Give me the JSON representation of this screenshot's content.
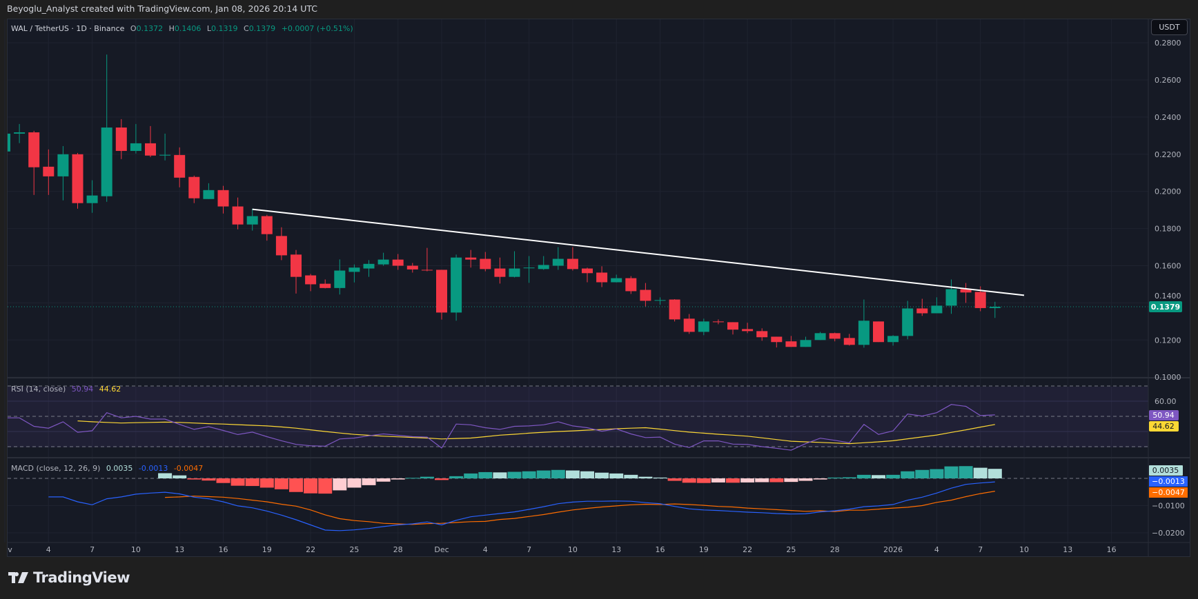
{
  "attribution": "Beyoglu_Analyst created with TradingView.com, Jan 08, 2026 20:14 UTC",
  "symbol_legend": {
    "symbol": "WAL / TetherUS · 1D · Binance",
    "open_label": "O",
    "open": "0.1372",
    "high_label": "H",
    "high": "0.1406",
    "low_label": "L",
    "low": "0.1319",
    "close_label": "C",
    "close": "0.1379",
    "change": "+0.0007 (+0.51%)"
  },
  "currency_button": "USDT",
  "last_price_badge": "0.1379",
  "rsi_legend": {
    "title": "RSI (14, close)",
    "rsi": "50.94",
    "ma": "44.62"
  },
  "macd_legend": {
    "title": "MACD (close, 12, 26, 9)",
    "hist": "0.0035",
    "macd": "-0.0013",
    "signal": "-0.0047"
  },
  "badges": {
    "rsi": "50.94",
    "rsi_ma": "44.62",
    "hist": "0.0035",
    "macd": "−0.0013",
    "signal": "−0.0047"
  },
  "logo_text": "TradingView",
  "colors": {
    "up": "#089981",
    "down": "#f23645",
    "rsi": "#7e57c2",
    "rsi_ma": "#fdd835",
    "macd": "#2962ff",
    "signal": "#ff6d00",
    "hist_up_grow": "#26a69a",
    "hist_up_fall": "#b2dfdb",
    "hist_down_grow": "#ff5252",
    "hist_down_fall": "#ffcdd2",
    "trendline": "#ffffff",
    "background": "#161a25"
  },
  "chart_data": {
    "type": "candlestick",
    "price_axis": {
      "ticks": [
        "0.2800",
        "0.2600",
        "0.2400",
        "0.2200",
        "0.2000",
        "0.1800",
        "0.1600",
        "0.1400",
        "0.1200",
        "0.1000"
      ],
      "range": [
        0.1,
        0.2875
      ]
    },
    "date_axis": [
      {
        "date": "2025-11-01",
        "label": "Nov"
      },
      {
        "date": "2025-11-04",
        "label": "4"
      },
      {
        "date": "2025-11-07",
        "label": "7"
      },
      {
        "date": "2025-11-10",
        "label": "10"
      },
      {
        "date": "2025-11-13",
        "label": "13"
      },
      {
        "date": "2025-11-16",
        "label": "16"
      },
      {
        "date": "2025-11-19",
        "label": "19"
      },
      {
        "date": "2025-11-22",
        "label": "22"
      },
      {
        "date": "2025-11-25",
        "label": "25"
      },
      {
        "date": "2025-11-28",
        "label": "28"
      },
      {
        "date": "2025-12-01",
        "label": "Dec"
      },
      {
        "date": "2025-12-04",
        "label": "4"
      },
      {
        "date": "2025-12-07",
        "label": "7"
      },
      {
        "date": "2025-12-10",
        "label": "10"
      },
      {
        "date": "2025-12-13",
        "label": "13"
      },
      {
        "date": "2025-12-16",
        "label": "16"
      },
      {
        "date": "2025-12-19",
        "label": "19"
      },
      {
        "date": "2025-12-22",
        "label": "22"
      },
      {
        "date": "2025-12-25",
        "label": "25"
      },
      {
        "date": "2025-12-28",
        "label": "28"
      },
      {
        "date": "2026-01-01",
        "label": "2026"
      },
      {
        "date": "2026-01-04",
        "label": "4"
      },
      {
        "date": "2026-01-07",
        "label": "7"
      },
      {
        "date": "2026-01-10",
        "label": "10"
      },
      {
        "date": "2026-01-13",
        "label": "13"
      },
      {
        "date": "2026-01-16",
        "label": "16"
      }
    ],
    "candles_fields": [
      "date",
      "open",
      "high",
      "low",
      "close"
    ],
    "candles": [
      [
        "2025-11-01",
        0.2215,
        0.233,
        0.2215,
        0.2311
      ],
      [
        "2025-11-02",
        0.2311,
        0.2363,
        0.226,
        0.2318
      ],
      [
        "2025-11-03",
        0.2318,
        0.2326,
        0.1981,
        0.213
      ],
      [
        "2025-11-04",
        0.2133,
        0.2226,
        0.1981,
        0.2081
      ],
      [
        "2025-11-05",
        0.2081,
        0.2244,
        0.1952,
        0.22
      ],
      [
        "2025-11-06",
        0.22,
        0.2207,
        0.1907,
        0.1937
      ],
      [
        "2025-11-07",
        0.1937,
        0.206,
        0.1885,
        0.1978
      ],
      [
        "2025-11-08",
        0.1974,
        0.2737,
        0.1944,
        0.2344
      ],
      [
        "2025-11-09",
        0.2344,
        0.2389,
        0.2174,
        0.2218
      ],
      [
        "2025-11-10",
        0.2218,
        0.2363,
        0.2204,
        0.2259
      ],
      [
        "2025-11-11",
        0.2259,
        0.2352,
        0.2185,
        0.2193
      ],
      [
        "2025-11-12",
        0.2193,
        0.2311,
        0.2167,
        0.2197
      ],
      [
        "2025-11-13",
        0.2196,
        0.2237,
        0.2022,
        0.2074
      ],
      [
        "2025-11-14",
        0.2078,
        0.2085,
        0.1937,
        0.1963
      ],
      [
        "2025-11-15",
        0.1959,
        0.2044,
        0.1959,
        0.2007
      ],
      [
        "2025-11-16",
        0.2007,
        0.203,
        0.1881,
        0.1919
      ],
      [
        "2025-11-17",
        0.1919,
        0.1967,
        0.1796,
        0.1822
      ],
      [
        "2025-11-18",
        0.1822,
        0.1907,
        0.1789,
        0.1867
      ],
      [
        "2025-11-19",
        0.1867,
        0.1874,
        0.1735,
        0.177
      ],
      [
        "2025-11-20",
        0.176,
        0.1807,
        0.163,
        0.1656
      ],
      [
        "2025-11-21",
        0.166,
        0.1685,
        0.145,
        0.154
      ],
      [
        "2025-11-22",
        0.1548,
        0.1556,
        0.1463,
        0.15
      ],
      [
        "2025-11-23",
        0.1503,
        0.1526,
        0.1478,
        0.148
      ],
      [
        "2025-11-24",
        0.148,
        0.1634,
        0.1445,
        0.1574
      ],
      [
        "2025-11-25",
        0.1567,
        0.1607,
        0.151,
        0.159
      ],
      [
        "2025-11-26",
        0.1585,
        0.163,
        0.154,
        0.161
      ],
      [
        "2025-11-27",
        0.1607,
        0.167,
        0.16,
        0.1633
      ],
      [
        "2025-11-28",
        0.1633,
        0.1663,
        0.1578,
        0.16
      ],
      [
        "2025-11-29",
        0.16,
        0.1615,
        0.1563,
        0.158
      ],
      [
        "2025-11-30",
        0.1578,
        0.1696,
        0.157,
        0.1575
      ],
      [
        "2025-12-01",
        0.1578,
        0.1578,
        0.131,
        0.1348
      ],
      [
        "2025-12-02",
        0.1348,
        0.166,
        0.1304,
        0.1644
      ],
      [
        "2025-12-03",
        0.1644,
        0.1685,
        0.159,
        0.1633
      ],
      [
        "2025-12-04",
        0.1637,
        0.1674,
        0.157,
        0.1582
      ],
      [
        "2025-12-05",
        0.1585,
        0.1644,
        0.1504,
        0.154
      ],
      [
        "2025-12-06",
        0.154,
        0.1678,
        0.1537,
        0.1585
      ],
      [
        "2025-12-07",
        0.1588,
        0.1652,
        0.1508,
        0.159
      ],
      [
        "2025-12-08",
        0.1582,
        0.1652,
        0.1578,
        0.1604
      ],
      [
        "2025-12-09",
        0.16,
        0.17,
        0.1578,
        0.1637
      ],
      [
        "2025-12-10",
        0.1637,
        0.17,
        0.1574,
        0.1582
      ],
      [
        "2025-12-11",
        0.1585,
        0.159,
        0.1511,
        0.156
      ],
      [
        "2025-12-12",
        0.1563,
        0.1597,
        0.1485,
        0.1511
      ],
      [
        "2025-12-13",
        0.1511,
        0.1552,
        0.151,
        0.1533
      ],
      [
        "2025-12-14",
        0.1533,
        0.1544,
        0.1448,
        0.1463
      ],
      [
        "2025-12-15",
        0.147,
        0.1507,
        0.1381,
        0.1411
      ],
      [
        "2025-12-16",
        0.1413,
        0.143,
        0.139,
        0.1415
      ],
      [
        "2025-12-17",
        0.1418,
        0.142,
        0.13,
        0.1311
      ],
      [
        "2025-12-18",
        0.1315,
        0.134,
        0.1233,
        0.1244
      ],
      [
        "2025-12-19",
        0.1244,
        0.1315,
        0.1226,
        0.13
      ],
      [
        "2025-12-20",
        0.13,
        0.1311,
        0.1285,
        0.1296
      ],
      [
        "2025-12-21",
        0.1296,
        0.1296,
        0.123,
        0.1256
      ],
      [
        "2025-12-22",
        0.1259,
        0.1293,
        0.1237,
        0.1248
      ],
      [
        "2025-12-23",
        0.1248,
        0.1263,
        0.1196,
        0.1215
      ],
      [
        "2025-12-24",
        0.1218,
        0.1218,
        0.116,
        0.1189
      ],
      [
        "2025-12-25",
        0.1193,
        0.1222,
        0.1163,
        0.1163
      ],
      [
        "2025-12-26",
        0.1163,
        0.1218,
        0.1163,
        0.12
      ],
      [
        "2025-12-27",
        0.12,
        0.1244,
        0.12,
        0.1237
      ],
      [
        "2025-12-28",
        0.1237,
        0.124,
        0.1193,
        0.1207
      ],
      [
        "2025-12-29",
        0.1211,
        0.1233,
        0.117,
        0.1174
      ],
      [
        "2025-12-30",
        0.1174,
        0.1418,
        0.1159,
        0.1304
      ],
      [
        "2025-12-31",
        0.13,
        0.13,
        0.1189,
        0.1189
      ],
      [
        "2026-01-01",
        0.1189,
        0.1226,
        0.117,
        0.1222
      ],
      [
        "2026-01-02",
        0.1222,
        0.1411,
        0.1204,
        0.137
      ],
      [
        "2026-01-03",
        0.137,
        0.1422,
        0.133,
        0.1344
      ],
      [
        "2026-01-04",
        0.1344,
        0.143,
        0.1344,
        0.1385
      ],
      [
        "2026-01-05",
        0.1385,
        0.1526,
        0.1341,
        0.1474
      ],
      [
        "2026-01-06",
        0.1474,
        0.1507,
        0.14,
        0.1456
      ],
      [
        "2026-01-07",
        0.1459,
        0.1489,
        0.1355,
        0.1372
      ],
      [
        "2026-01-08",
        0.1372,
        0.1406,
        0.1319,
        0.1379
      ]
    ],
    "last_price": 0.1379,
    "trendline": [
      [
        "2025-11-18",
        0.1904
      ],
      [
        "2026-01-10",
        0.1441
      ]
    ],
    "rsi": {
      "levels": [
        70,
        50,
        30
      ],
      "ticks": [
        "60.00"
      ],
      "range": [
        24,
        80
      ],
      "start_date": "2025-11-01",
      "values": [
        49,
        49,
        43.4,
        42.2,
        46.4,
        39.5,
        40.5,
        52.4,
        49,
        50,
        48.2,
        48.2,
        44.7,
        41.4,
        43.2,
        40.7,
        38,
        39.6,
        36.6,
        33.9,
        31.5,
        30.6,
        30.3,
        35.1,
        35.7,
        37.2,
        38.4,
        37.5,
        36.6,
        36.3,
        29.1,
        44.9,
        44.4,
        42.5,
        41.4,
        43.4,
        43.7,
        44.4,
        46.4,
        43.7,
        42.5,
        40.2,
        41.7,
        38.4,
        36,
        36.3,
        31.7,
        29.4,
        33.8,
        33.8,
        31.7,
        31.5,
        30,
        28.9,
        27.7,
        32,
        35.6,
        34.2,
        32.6,
        44.7,
        38.1,
        40.4,
        51.5,
        50.2,
        52.4,
        57.8,
        56.6,
        50.5,
        50.94
      ],
      "ma": [
        null,
        null,
        null,
        null,
        null,
        47,
        46.4,
        46.0,
        45.6,
        45.8,
        46.0,
        46.2,
        46.0,
        45.6,
        45.2,
        44.9,
        44.5,
        44.1,
        43.7,
        43.0,
        42.2,
        41.1,
        40.0,
        39.0,
        38.1,
        37.5,
        36.9,
        36.5,
        36.1,
        35.7,
        35.1,
        35.4,
        35.7,
        36.6,
        37.6,
        38.2,
        38.9,
        39.5,
        40.0,
        40.4,
        40.9,
        41.3,
        41.8,
        42.2,
        42.5,
        41.6,
        40.6,
        39.6,
        38.9,
        38.2,
        37.6,
        36.9,
        35.8,
        34.7,
        33.6,
        33.2,
        32.8,
        32.4,
        32.0,
        32.6,
        33.2,
        33.9,
        35.2,
        36.4,
        37.7,
        39.4,
        41.1,
        42.9,
        44.62
      ]
    },
    "macd": {
      "ticks": [
        "-0.0100",
        "-0.0200"
      ],
      "range": [
        -0.0235,
        0.0075
      ],
      "start_date": "2025-11-01",
      "macd": [
        null,
        null,
        null,
        -0.0068,
        -0.0068,
        -0.0086,
        -0.0097,
        -0.0075,
        -0.0068,
        -0.0058,
        -0.0054,
        -0.0051,
        -0.0057,
        -0.0069,
        -0.0075,
        -0.0086,
        -0.0101,
        -0.0108,
        -0.012,
        -0.0135,
        -0.0152,
        -0.0171,
        -0.019,
        -0.0192,
        -0.0189,
        -0.0184,
        -0.0177,
        -0.0171,
        -0.0167,
        -0.016,
        -0.0171,
        -0.0154,
        -0.0141,
        -0.0135,
        -0.0129,
        -0.0123,
        -0.0114,
        -0.0104,
        -0.0093,
        -0.0087,
        -0.0084,
        -0.0084,
        -0.0083,
        -0.0084,
        -0.0089,
        -0.0093,
        -0.0103,
        -0.0112,
        -0.0116,
        -0.0118,
        -0.0121,
        -0.0124,
        -0.0126,
        -0.0129,
        -0.0131,
        -0.013,
        -0.0123,
        -0.0119,
        -0.0113,
        -0.0104,
        -0.0101,
        -0.0096,
        -0.008,
        -0.0069,
        -0.0054,
        -0.0036,
        -0.0022,
        -0.0017,
        -0.0013
      ],
      "signal": [
        null,
        null,
        null,
        null,
        null,
        null,
        null,
        null,
        null,
        null,
        null,
        -0.007,
        -0.0068,
        -0.0065,
        -0.0067,
        -0.0069,
        -0.0074,
        -0.008,
        -0.0086,
        -0.0095,
        -0.0102,
        -0.0116,
        -0.0134,
        -0.0148,
        -0.0155,
        -0.0159,
        -0.0165,
        -0.0167,
        -0.0169,
        -0.0166,
        -0.0165,
        -0.0162,
        -0.0159,
        -0.0158,
        -0.0151,
        -0.0147,
        -0.014,
        -0.0133,
        -0.0124,
        -0.0116,
        -0.011,
        -0.0105,
        -0.0101,
        -0.0097,
        -0.0095,
        -0.0096,
        -0.0094,
        -0.0096,
        -0.0099,
        -0.0103,
        -0.0105,
        -0.0109,
        -0.0112,
        -0.0115,
        -0.0118,
        -0.0121,
        -0.0119,
        -0.0122,
        -0.0117,
        -0.0117,
        -0.0113,
        -0.0109,
        -0.0106,
        -0.01,
        -0.0088,
        -0.008,
        -0.0067,
        -0.0056,
        -0.0047
      ],
      "histogram": [
        null,
        null,
        null,
        null,
        null,
        null,
        null,
        null,
        null,
        null,
        null,
        0.0019,
        0.0011,
        -0.0004,
        -0.0008,
        -0.0017,
        -0.0027,
        -0.0028,
        -0.0034,
        -0.004,
        -0.005,
        -0.0055,
        -0.0056,
        -0.0044,
        -0.0034,
        -0.0025,
        -0.0012,
        -0.0004,
        0.0002,
        0.0006,
        -0.0006,
        0.0008,
        0.0018,
        0.0023,
        0.0022,
        0.0024,
        0.0026,
        0.0029,
        0.0031,
        0.0029,
        0.0026,
        0.0021,
        0.0018,
        0.0013,
        0.0006,
        0.0003,
        -0.0009,
        -0.0016,
        -0.0017,
        -0.0015,
        -0.0016,
        -0.0015,
        -0.0014,
        -0.0014,
        -0.0013,
        -0.0009,
        -0.0004,
        0.0003,
        0.0004,
        0.0013,
        0.0012,
        0.0013,
        0.0026,
        0.0031,
        0.0034,
        0.0044,
        0.0045,
        0.0039,
        0.0035
      ]
    }
  }
}
